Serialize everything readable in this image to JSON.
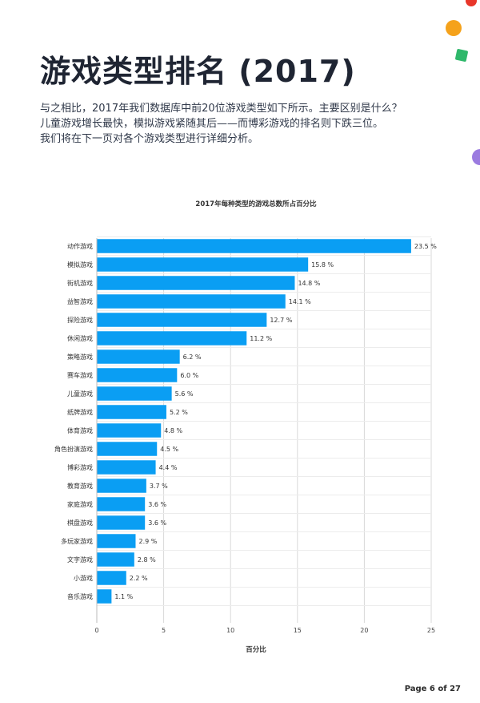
{
  "page": {
    "title": "游戏类型排名 (2017)",
    "intro_lines": [
      "与之相比，2017年我们数据库中前20位游戏类型如下所示。主要区别是什么？",
      "儿童游戏增长最快，模拟游戏紧随其后——而博彩游戏的排名则下跌三位。",
      "我们将在下一页对各个游戏类型进行详细分析。"
    ],
    "page_number": "Page 6 of 27"
  },
  "colors": {
    "bar": "#0a9ef3",
    "grid": "#d9d9d9",
    "deco_orange": "#f5a21b",
    "deco_red": "#e8362a",
    "deco_green": "#2fb86b",
    "deco_purple": "#9b7be0"
  },
  "chart_data": {
    "type": "bar",
    "orientation": "horizontal",
    "title": "2017年每种类型的游戏总数所占百分比",
    "xlabel": "百分比",
    "ylabel": "",
    "xlim": [
      0,
      25
    ],
    "xticks": [
      0,
      5,
      10,
      15,
      20,
      25
    ],
    "grid": true,
    "categories": [
      "动作游戏",
      "模拟游戏",
      "街机游戏",
      "益智游戏",
      "探险游戏",
      "休闲游戏",
      "策略游戏",
      "赛车游戏",
      "儿童游戏",
      "纸牌游戏",
      "体育游戏",
      "角色扮演游戏",
      "博彩游戏",
      "教育游戏",
      "家庭游戏",
      "棋盘游戏",
      "多玩家游戏",
      "文字游戏",
      "小游戏",
      "音乐游戏"
    ],
    "values": [
      23.5,
      15.8,
      14.8,
      14.1,
      12.7,
      11.2,
      6.2,
      6.0,
      5.6,
      5.2,
      4.8,
      4.5,
      4.4,
      3.7,
      3.6,
      3.6,
      2.9,
      2.8,
      2.2,
      1.1
    ],
    "data_labels": [
      "23.5 %",
      "15.8 %",
      "14.8 %",
      "14.1 %",
      "12.7 %",
      "11.2 %",
      "6.2 %",
      "6.0 %",
      "5.6 %",
      "5.2 %",
      "4.8 %",
      "4.5 %",
      "4.4 %",
      "3.7 %",
      "3.6 %",
      "3.6 %",
      "2.9 %",
      "2.8 %",
      "2.2 %",
      "1.1 %"
    ]
  }
}
